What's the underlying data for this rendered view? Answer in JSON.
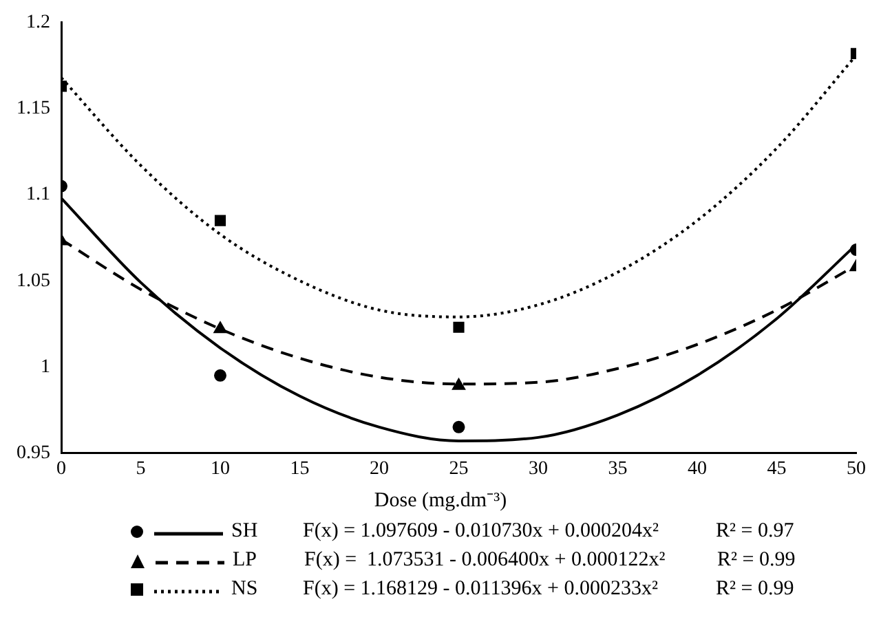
{
  "chart_data": {
    "type": "scatter",
    "xlabel": "Dose (mg.dm⁻³)",
    "xlim": [
      0,
      50
    ],
    "xticks": [
      0,
      5,
      10,
      15,
      20,
      25,
      30,
      35,
      40,
      45,
      50
    ],
    "ylim": [
      0.95,
      1.2
    ],
    "yticks": [
      0.95,
      1,
      1.05,
      1.1,
      1.15,
      1.2
    ],
    "grid": false,
    "legend": "bottom",
    "series": [
      {
        "name": "SH",
        "type": "scatter",
        "marker": "circle",
        "color": "#000000",
        "x": [
          0,
          10,
          25,
          50
        ],
        "values": [
          1.105,
          0.995,
          0.965,
          1.068
        ]
      },
      {
        "name": "LP",
        "type": "scatter",
        "marker": "triangle",
        "color": "#000000",
        "x": [
          0,
          10,
          25,
          50
        ],
        "values": [
          1.073,
          1.022,
          0.989,
          1.058
        ]
      },
      {
        "name": "NS",
        "type": "scatter",
        "marker": "square",
        "color": "#000000",
        "x": [
          0,
          10,
          25,
          50
        ],
        "values": [
          1.163,
          1.085,
          1.023,
          1.182
        ]
      },
      {
        "type": "line",
        "marker": "none",
        "line_style": "solid",
        "color": "#000000",
        "x": [
          0,
          5,
          10,
          15,
          20,
          25,
          30,
          35,
          40,
          45,
          50
        ],
        "values": [
          1.098,
          1.049,
          1.011,
          0.983,
          0.965,
          0.957,
          0.959,
          0.972,
          0.995,
          1.028,
          1.071
        ]
      },
      {
        "type": "line",
        "marker": "none",
        "line_style": "dashed",
        "color": "#000000",
        "x": [
          0,
          5,
          10,
          15,
          20,
          25,
          30,
          35,
          40,
          45,
          50
        ],
        "values": [
          1.074,
          1.045,
          1.022,
          1.005,
          0.994,
          0.99,
          0.991,
          0.999,
          1.013,
          1.033,
          1.059
        ]
      },
      {
        "type": "line",
        "marker": "none",
        "line_style": "dotted",
        "color": "#000000",
        "x": [
          0,
          5,
          10,
          15,
          20,
          25,
          30,
          35,
          40,
          45,
          50
        ],
        "values": [
          1.168,
          1.117,
          1.077,
          1.05,
          1.033,
          1.029,
          1.036,
          1.055,
          1.085,
          1.127,
          1.181
        ]
      }
    ],
    "annotations": [
      "F(x) = 1.097609 - 0.010730x + 0.000204x²",
      "R² = 0.97",
      "F(x) =  1.073531 - 0.006400x + 0.000122x²",
      "R² = 0.99",
      "F(x) = 1.168129 - 0.011396x + 0.000233x²",
      "R² = 0.99"
    ]
  }
}
